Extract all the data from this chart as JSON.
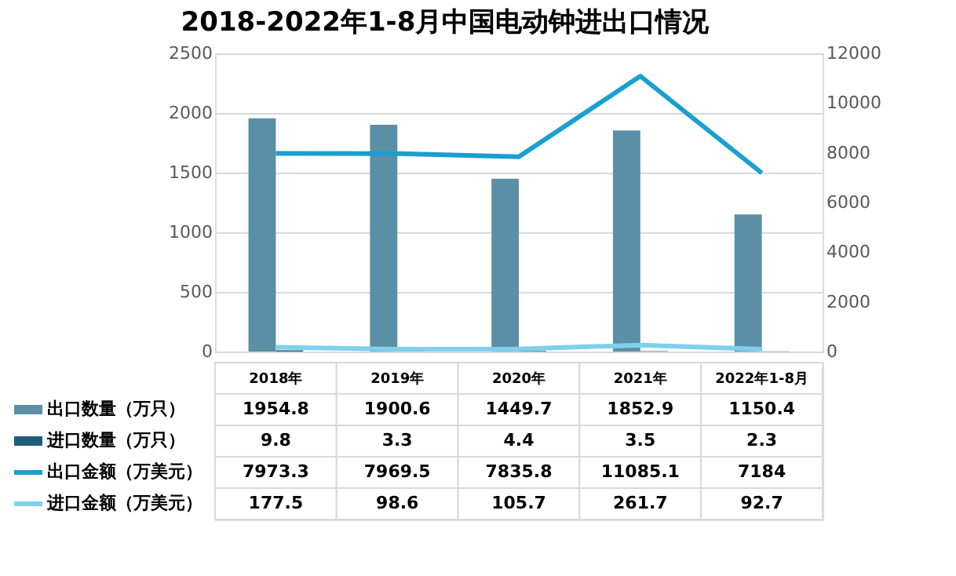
{
  "chart_data": {
    "type": "bar",
    "title": "2018-2022年1-8月中国电动钟进出口情况",
    "categories": [
      "2018年",
      "2019年",
      "2020年",
      "2021年",
      "2022年1-8月"
    ],
    "series": [
      {
        "name": "出口数量（万只）",
        "color": "#5b8fa6",
        "values": [
          1954.8,
          1900.6,
          1449.7,
          1852.9,
          1150.4
        ]
      },
      {
        "name": "进口数量（万只）",
        "color": "#1e5d78",
        "values": [
          9.8,
          3.3,
          4.4,
          3.5,
          2.3
        ]
      },
      {
        "name": "出口金额（万美元）",
        "type": "line",
        "axis": "y2",
        "color": "#1a9fd0",
        "values": [
          7973.3,
          7969.5,
          7835.8,
          11085.1,
          7184
        ]
      },
      {
        "name": "进口金额（万美元）",
        "type": "line",
        "axis": "y2",
        "color": "#7fd0ee",
        "values": [
          177.5,
          98.6,
          105.7,
          261.7,
          92.7
        ]
      }
    ],
    "ylim": [
      0,
      2500
    ],
    "yticks": [
      0,
      500,
      1000,
      1500,
      2000,
      2500
    ],
    "y2lim": [
      0,
      12000
    ],
    "y2ticks": [
      0,
      2000,
      4000,
      6000,
      8000,
      10000,
      12000
    ],
    "grid": "y",
    "data_labels": true,
    "legend": "bottom"
  }
}
